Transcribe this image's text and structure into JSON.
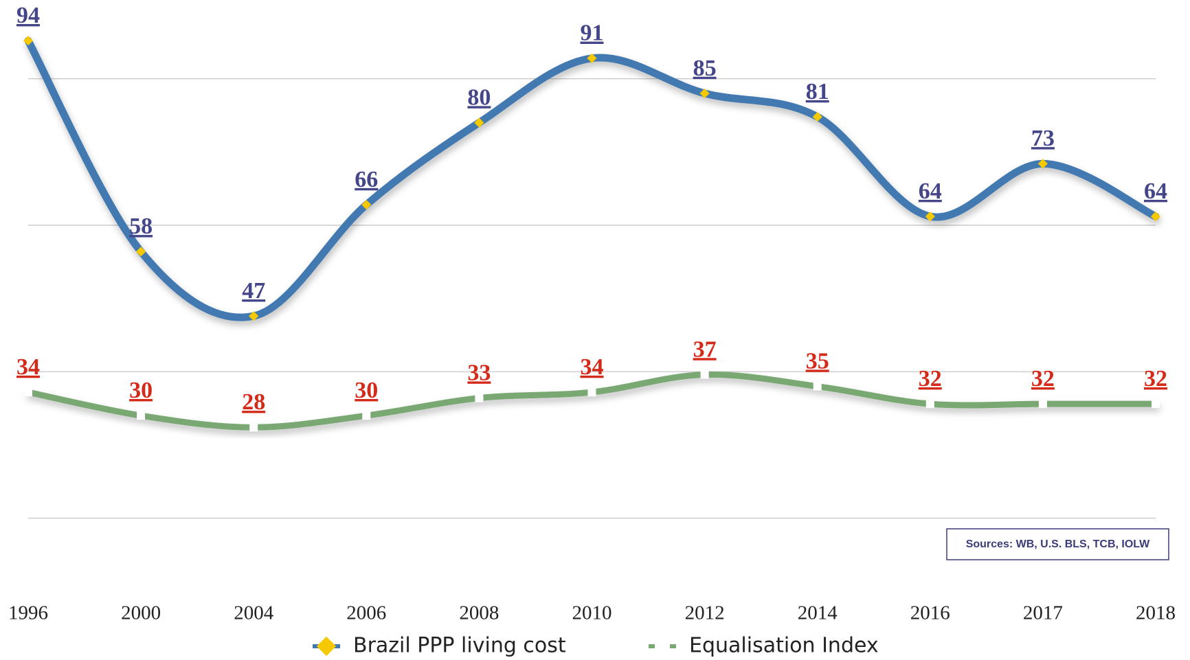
{
  "chart_data": {
    "type": "line",
    "categories": [
      "1996",
      "2000",
      "2004",
      "2006",
      "2008",
      "2010",
      "2012",
      "2014",
      "2016",
      "2017",
      "2018"
    ],
    "series": [
      {
        "name": "Brazil PPP living cost",
        "color": "#4379b0",
        "marker_color": "#f5c800",
        "label_color": "#45458a",
        "values": [
          94,
          58,
          47,
          66,
          80,
          91,
          85,
          81,
          64,
          73,
          64
        ]
      },
      {
        "name": "Equalisation Index",
        "color": "#7aa873",
        "marker_color": "#ffffff",
        "label_color": "#d42a1a",
        "values": [
          34,
          30,
          28,
          30,
          33,
          34,
          37,
          35,
          32,
          32,
          32
        ]
      }
    ],
    "ylim": [
      12.5,
      100
    ],
    "yticks": [
      12.5,
      37.5,
      62.5,
      87.5
    ],
    "grid": true,
    "source": "Sources: WB, U.S. BLS, TCB, IOLW"
  }
}
